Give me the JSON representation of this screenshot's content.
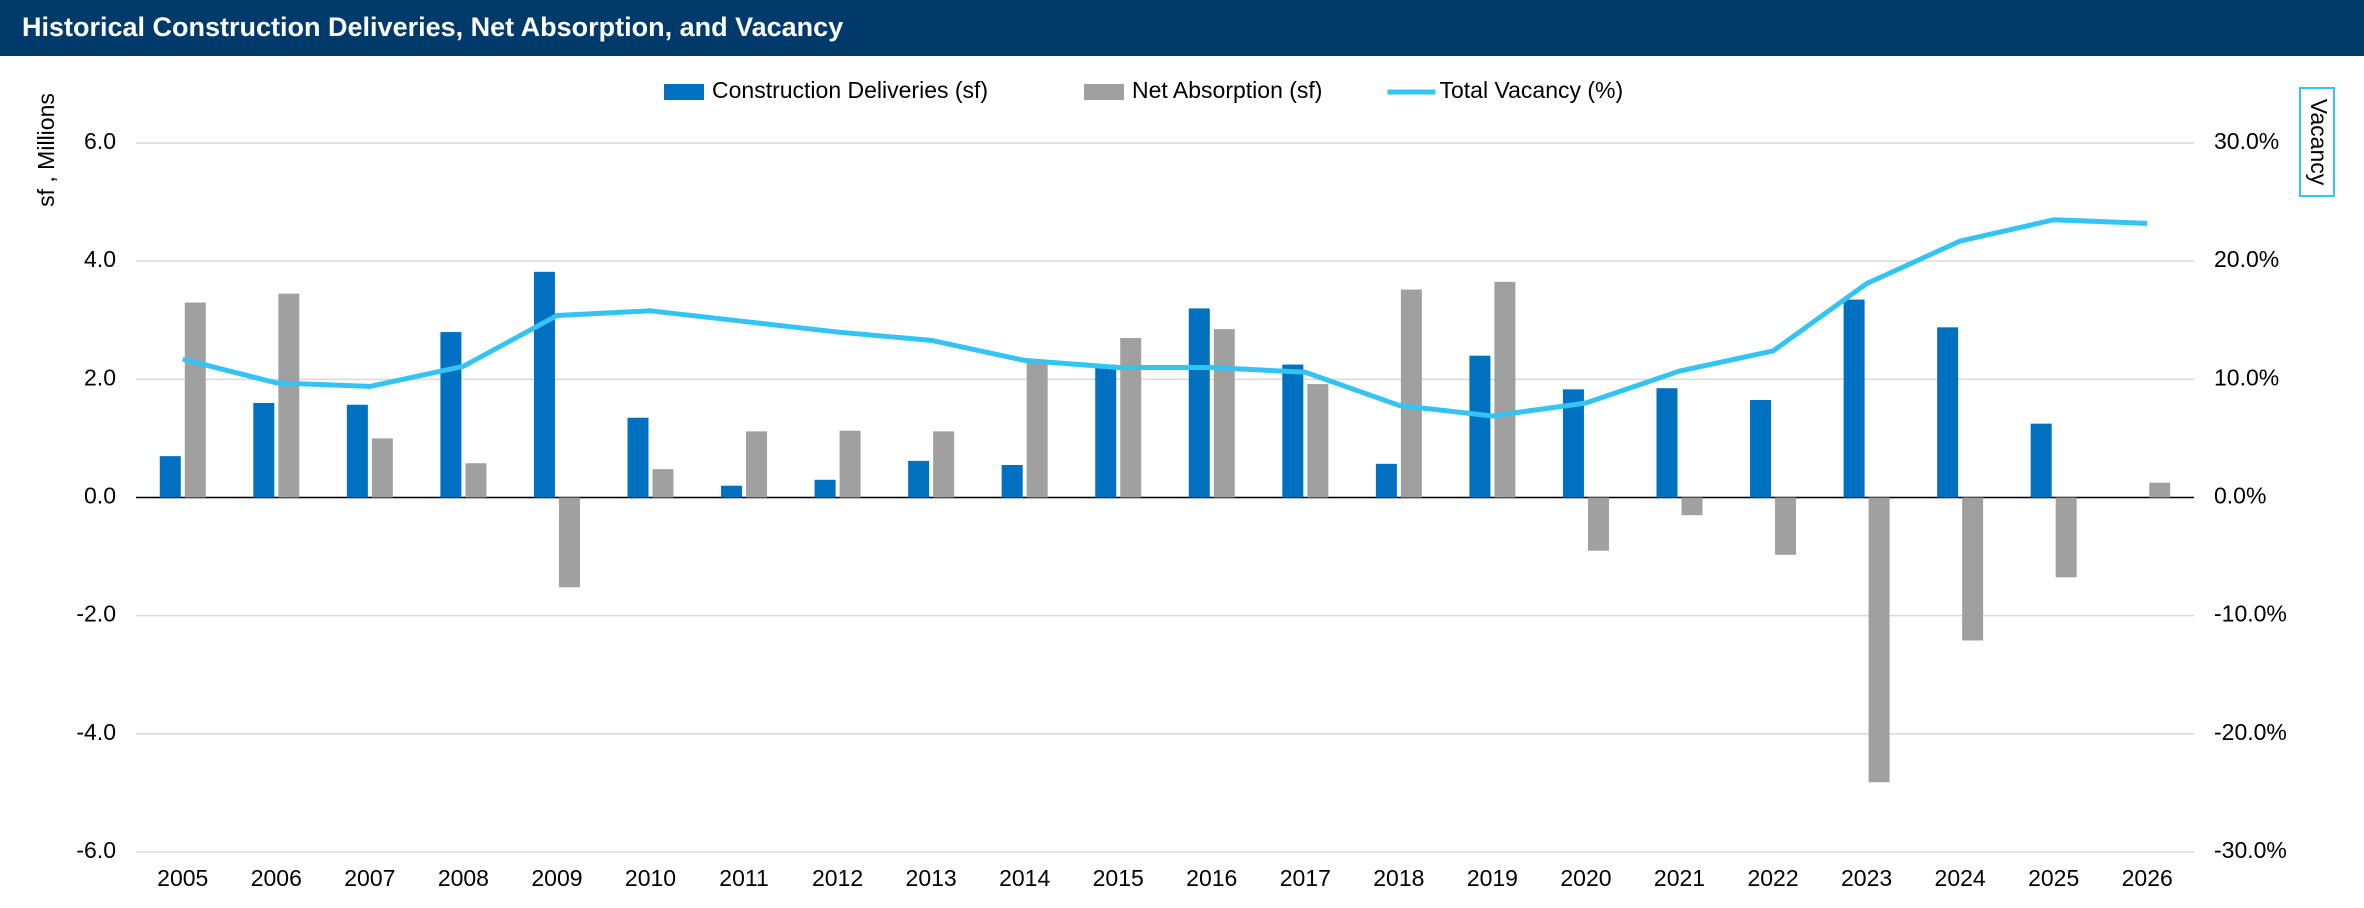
{
  "chart_data": {
    "type": "bar-line",
    "title": "Historical Construction Deliveries, Net Absorption, and Vacancy",
    "ylabel": "sf , Millions",
    "y2label": "Vacancy",
    "categories": [
      "2005",
      "2006",
      "2007",
      "2008",
      "2009",
      "2010",
      "2011",
      "2012",
      "2013",
      "2014",
      "2015",
      "2016",
      "2017",
      "2018",
      "2019",
      "2020",
      "2021",
      "2022",
      "2023",
      "2024",
      "2025",
      "2026"
    ],
    "series": [
      {
        "name": "Construction Deliveries (sf)",
        "color": "#0070c0",
        "kind": "bar",
        "values": [
          0.7,
          1.6,
          1.57,
          2.8,
          3.82,
          1.35,
          0.2,
          0.3,
          0.62,
          0.55,
          2.25,
          3.2,
          2.25,
          0.57,
          2.4,
          1.83,
          1.85,
          1.65,
          3.35,
          2.88,
          1.25,
          null
        ]
      },
      {
        "name": "Net Absorption (sf)",
        "color": "#a0a0a0",
        "kind": "bar",
        "values": [
          3.3,
          3.45,
          1.0,
          0.58,
          -1.52,
          0.48,
          1.12,
          1.13,
          1.12,
          2.33,
          2.7,
          2.85,
          1.92,
          3.52,
          3.65,
          -0.9,
          -0.3,
          -0.97,
          -4.82,
          -2.42,
          -1.35,
          0.25
        ]
      },
      {
        "name": "Total Vacancy (%)",
        "color": "#33c4f5",
        "kind": "line",
        "axis": "y2",
        "values": [
          11.7,
          9.7,
          9.4,
          11.1,
          15.4,
          15.8,
          14.9,
          14.0,
          13.3,
          11.6,
          11.0,
          11.0,
          10.6,
          7.8,
          6.9,
          8.0,
          10.7,
          12.4,
          18.1,
          21.7,
          23.5,
          23.2
        ]
      }
    ],
    "ylim": [
      -6,
      6
    ],
    "yticks": [
      {
        "value": -6,
        "label": "-6.0"
      },
      {
        "value": -4,
        "label": "-4.0"
      },
      {
        "value": -2,
        "label": "-2.0"
      },
      {
        "value": 0,
        "label": "0.0"
      },
      {
        "value": 2,
        "label": "2.0"
      },
      {
        "value": 4,
        "label": "4.0"
      },
      {
        "value": 6,
        "label": "6.0"
      }
    ],
    "y2lim": [
      -30,
      30
    ],
    "y2ticks": [
      {
        "value": -30,
        "label": "-30.0%"
      },
      {
        "value": -20,
        "label": "-20.0%"
      },
      {
        "value": -10,
        "label": "-10.0%"
      },
      {
        "value": 0,
        "label": "0.0%"
      },
      {
        "value": 10,
        "label": "10.0%"
      },
      {
        "value": 20,
        "label": "20.0%"
      },
      {
        "value": 30,
        "label": "30.0%"
      }
    ],
    "grid": true,
    "legend": "top"
  }
}
